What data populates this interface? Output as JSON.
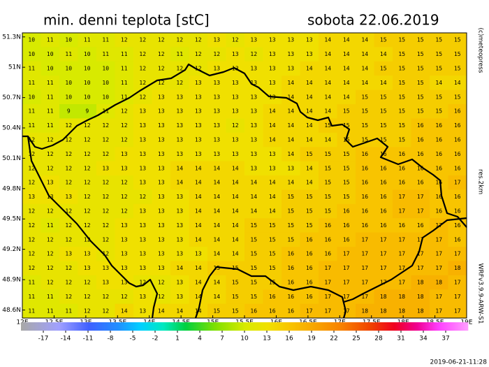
{
  "header": {
    "title": "min. denni teplota [stC]",
    "date": "sobota 22.06.2019"
  },
  "side": {
    "copyright": "(c)meteopress",
    "resolution": "res.2km",
    "model": "WRFv3.9.9-ARW-S1"
  },
  "footer": {
    "timestamp": "2019-06-21-11:28"
  },
  "map": {
    "xlim": [
      12,
      19
    ],
    "ylim": [
      48.52,
      51.34
    ],
    "xticks": [
      {
        "value": 12,
        "label": "12E"
      },
      {
        "value": 12.5,
        "label": "12.5E"
      },
      {
        "value": 13,
        "label": "13E"
      },
      {
        "value": 13.5,
        "label": "13.5E"
      },
      {
        "value": 14,
        "label": "14E"
      },
      {
        "value": 14.5,
        "label": "14.5E"
      },
      {
        "value": 15,
        "label": "15E"
      },
      {
        "value": 15.5,
        "label": "15.5E"
      },
      {
        "value": 16,
        "label": "16E"
      },
      {
        "value": 16.5,
        "label": "16.5E"
      },
      {
        "value": 17,
        "label": "17E"
      },
      {
        "value": 17.5,
        "label": "17.5E"
      },
      {
        "value": 18,
        "label": "18E"
      },
      {
        "value": 18.5,
        "label": "18.5E"
      },
      {
        "value": 19,
        "label": "19E"
      }
    ],
    "yticks": [
      {
        "value": 51.3,
        "label": "51.3N"
      },
      {
        "value": 51,
        "label": "51N"
      },
      {
        "value": 50.7,
        "label": "50.7N"
      },
      {
        "value": 50.4,
        "label": "50.4N"
      },
      {
        "value": 50.1,
        "label": "50.1N"
      },
      {
        "value": 49.8,
        "label": "49.8N"
      },
      {
        "value": 49.5,
        "label": "49.5N"
      },
      {
        "value": 49.2,
        "label": "49.2N"
      },
      {
        "value": 48.9,
        "label": "48.9N"
      },
      {
        "value": 48.6,
        "label": "48.6N"
      }
    ],
    "grid": [
      [
        10,
        11,
        10,
        11,
        11,
        12,
        12,
        12,
        12,
        12,
        13,
        12,
        13,
        13,
        13,
        13,
        14,
        14,
        14,
        15,
        15,
        15,
        15,
        15
      ],
      [
        10,
        10,
        11,
        10,
        11,
        11,
        12,
        12,
        11,
        12,
        12,
        13,
        12,
        13,
        13,
        13,
        14,
        14,
        14,
        14,
        15,
        15,
        15,
        15
      ],
      [
        11,
        10,
        10,
        10,
        10,
        11,
        12,
        12,
        12,
        12,
        13,
        13,
        13,
        13,
        13,
        14,
        14,
        14,
        14,
        15,
        15,
        15,
        15,
        15
      ],
      [
        11,
        11,
        10,
        10,
        10,
        11,
        12,
        12,
        12,
        13,
        13,
        13,
        13,
        13,
        14,
        14,
        14,
        14,
        14,
        14,
        15,
        15,
        14,
        14
      ],
      [
        10,
        11,
        10,
        10,
        10,
        11,
        12,
        13,
        13,
        13,
        13,
        13,
        13,
        13,
        14,
        14,
        14,
        14,
        15,
        15,
        15,
        15,
        15,
        15
      ],
      [
        11,
        11,
        9,
        9,
        11,
        12,
        13,
        13,
        13,
        13,
        13,
        13,
        13,
        14,
        14,
        14,
        14,
        15,
        15,
        15,
        15,
        15,
        15,
        16
      ],
      [
        11,
        11,
        12,
        12,
        12,
        12,
        13,
        13,
        13,
        13,
        13,
        12,
        13,
        14,
        14,
        14,
        15,
        15,
        15,
        15,
        15,
        16,
        16,
        16
      ],
      [
        12,
        12,
        12,
        12,
        12,
        12,
        13,
        13,
        13,
        13,
        13,
        13,
        13,
        14,
        14,
        14,
        14,
        15,
        15,
        15,
        15,
        16,
        16,
        16
      ],
      [
        12,
        12,
        12,
        12,
        12,
        13,
        13,
        13,
        13,
        13,
        13,
        13,
        13,
        13,
        14,
        15,
        15,
        15,
        16,
        16,
        16,
        16,
        16,
        16
      ],
      [
        12,
        12,
        12,
        12,
        13,
        13,
        13,
        13,
        14,
        14,
        14,
        14,
        13,
        13,
        13,
        14,
        15,
        15,
        16,
        16,
        16,
        16,
        16,
        16
      ],
      [
        12,
        13,
        12,
        12,
        12,
        12,
        13,
        13,
        14,
        14,
        14,
        14,
        14,
        14,
        14,
        14,
        15,
        15,
        16,
        16,
        16,
        16,
        16,
        17
      ],
      [
        13,
        13,
        13,
        12,
        12,
        12,
        12,
        13,
        13,
        14,
        14,
        14,
        14,
        14,
        15,
        15,
        15,
        15,
        16,
        16,
        17,
        17,
        16,
        16
      ],
      [
        12,
        12,
        12,
        12,
        12,
        12,
        13,
        13,
        13,
        14,
        14,
        14,
        14,
        14,
        15,
        15,
        15,
        16,
        16,
        16,
        17,
        17,
        16,
        16
      ],
      [
        12,
        11,
        12,
        12,
        12,
        13,
        13,
        13,
        13,
        14,
        14,
        14,
        15,
        15,
        15,
        15,
        16,
        16,
        16,
        16,
        16,
        16,
        17,
        16
      ],
      [
        12,
        12,
        12,
        12,
        12,
        13,
        13,
        13,
        13,
        14,
        14,
        14,
        15,
        15,
        15,
        16,
        16,
        16,
        17,
        17,
        17,
        17,
        17,
        16
      ],
      [
        12,
        12,
        13,
        13,
        12,
        13,
        13,
        13,
        13,
        13,
        14,
        14,
        15,
        15,
        16,
        16,
        16,
        17,
        17,
        17,
        17,
        17,
        17,
        17
      ],
      [
        12,
        12,
        12,
        13,
        13,
        13,
        13,
        13,
        14,
        14,
        15,
        15,
        15,
        15,
        16,
        16,
        17,
        17,
        17,
        17,
        17,
        17,
        17,
        18
      ],
      [
        11,
        12,
        12,
        12,
        13,
        13,
        12,
        12,
        13,
        14,
        14,
        15,
        15,
        15,
        16,
        16,
        17,
        17,
        17,
        17,
        17,
        18,
        18,
        17
      ],
      [
        11,
        11,
        12,
        12,
        12,
        12,
        13,
        12,
        13,
        14,
        14,
        15,
        15,
        16,
        16,
        16,
        17,
        17,
        17,
        18,
        18,
        18,
        17,
        17
      ],
      [
        11,
        11,
        11,
        12,
        12,
        14,
        13,
        14,
        14,
        14,
        15,
        15,
        16,
        16,
        16,
        17,
        17,
        17,
        18,
        18,
        18,
        18,
        17,
        17
      ]
    ]
  },
  "colorbar": {
    "clim": [
      -20,
      40
    ],
    "ticks": [
      -17,
      -14,
      -11,
      -8,
      -5,
      -2,
      1,
      4,
      7,
      10,
      13,
      16,
      19,
      22,
      25,
      28,
      31,
      34,
      37
    ]
  }
}
